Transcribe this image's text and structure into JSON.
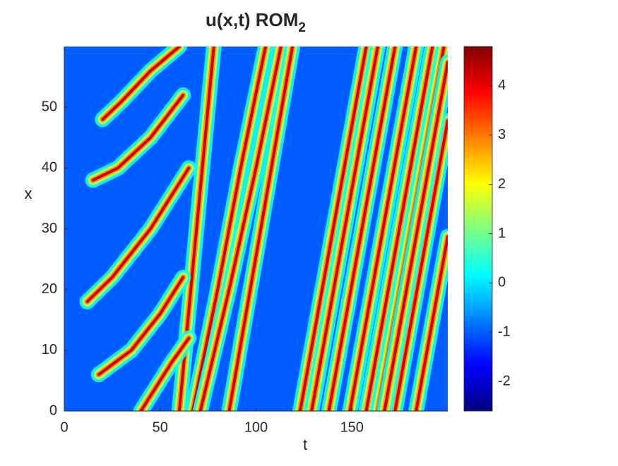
{
  "chart_data": {
    "type": "heatmap",
    "title": "u(x,t) ROM",
    "title_subscript": "2",
    "xlabel": "t",
    "ylabel": "x",
    "xlim": [
      0,
      200
    ],
    "xticks": [
      0,
      50,
      100,
      150
    ],
    "ylim": [
      0,
      60
    ],
    "yticks": [
      0,
      10,
      20,
      30,
      40,
      50
    ],
    "clim": [
      -2.6,
      4.8
    ],
    "cticks": [
      -2,
      -1,
      0,
      1,
      2,
      3,
      4
    ],
    "colormap": "jet",
    "background_value": -1,
    "wave_value": 4.2,
    "waves": [
      {
        "t": [
          123,
          157.5
        ],
        "x": [
          0,
          60
        ]
      },
      {
        "t": [
          157.5,
          192
        ],
        "x": [
          0,
          60
        ]
      },
      {
        "t": [
          129,
          163.5
        ],
        "x": [
          0,
          60
        ]
      },
      {
        "t": [
          163.5,
          198
        ],
        "x": [
          0,
          60
        ]
      },
      {
        "t": [
          138,
          172.5
        ],
        "x": [
          0,
          60
        ]
      },
      {
        "t": [
          172.5,
          200
        ],
        "x": [
          0,
          47.8
        ]
      },
      {
        "t": [
          149,
          183.5
        ],
        "x": [
          0,
          60
        ]
      },
      {
        "t": [
          183.5,
          200
        ],
        "x": [
          0,
          28.7
        ]
      },
      {
        "t": [
          167,
          200
        ],
        "x": [
          0,
          57.4
        ]
      },
      {
        "t": [
          67,
          80,
          92,
          105
        ],
        "x": [
          0,
          20,
          40,
          60
        ]
      },
      {
        "t": [
          71,
          86,
          100,
          113
        ],
        "x": [
          0,
          20,
          40,
          60
        ]
      },
      {
        "t": [
          86,
          97,
          108,
          119
        ],
        "x": [
          0,
          20,
          40,
          60
        ]
      },
      {
        "t": [
          60,
          66,
          72,
          78
        ],
        "x": [
          0,
          20,
          40,
          60
        ]
      },
      {
        "t": [
          20,
          30,
          45,
          60
        ],
        "x": [
          48,
          51,
          56,
          60
        ]
      },
      {
        "t": [
          15,
          28,
          45,
          62
        ],
        "x": [
          38,
          40,
          45,
          52
        ]
      },
      {
        "t": [
          12,
          25,
          45,
          65
        ],
        "x": [
          18,
          22,
          30,
          40
        ]
      },
      {
        "t": [
          18,
          35,
          50,
          62
        ],
        "x": [
          6,
          10,
          16,
          22
        ]
      },
      {
        "t": [
          40,
          48,
          56,
          65
        ],
        "x": [
          0,
          4,
          8,
          12
        ]
      }
    ]
  }
}
